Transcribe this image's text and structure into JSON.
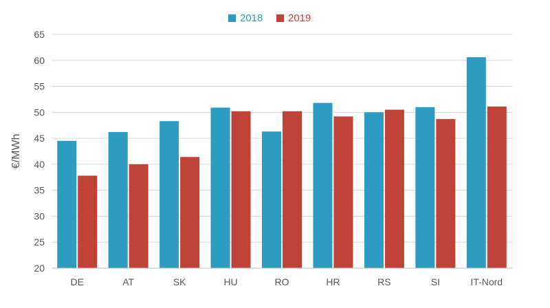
{
  "chart_data": {
    "type": "bar",
    "ylabel": "€/MWh",
    "ylim": [
      20,
      65
    ],
    "yticks": [
      20,
      25,
      30,
      35,
      40,
      45,
      50,
      55,
      60,
      65
    ],
    "grid": true,
    "legend_position": "top-center",
    "categories": [
      "DE",
      "AT",
      "SK",
      "HU",
      "RO",
      "HR",
      "RS",
      "SI",
      "IT-Nord"
    ],
    "series": [
      {
        "name": "2018",
        "color": "#2e9cc0",
        "values": [
          44.5,
          46.2,
          48.3,
          50.9,
          46.3,
          51.8,
          50.0,
          51.0,
          60.6
        ]
      },
      {
        "name": "2019",
        "color": "#bf4437",
        "values": [
          37.8,
          40.0,
          41.4,
          50.2,
          50.2,
          49.2,
          50.5,
          48.7,
          51.1
        ]
      }
    ]
  }
}
